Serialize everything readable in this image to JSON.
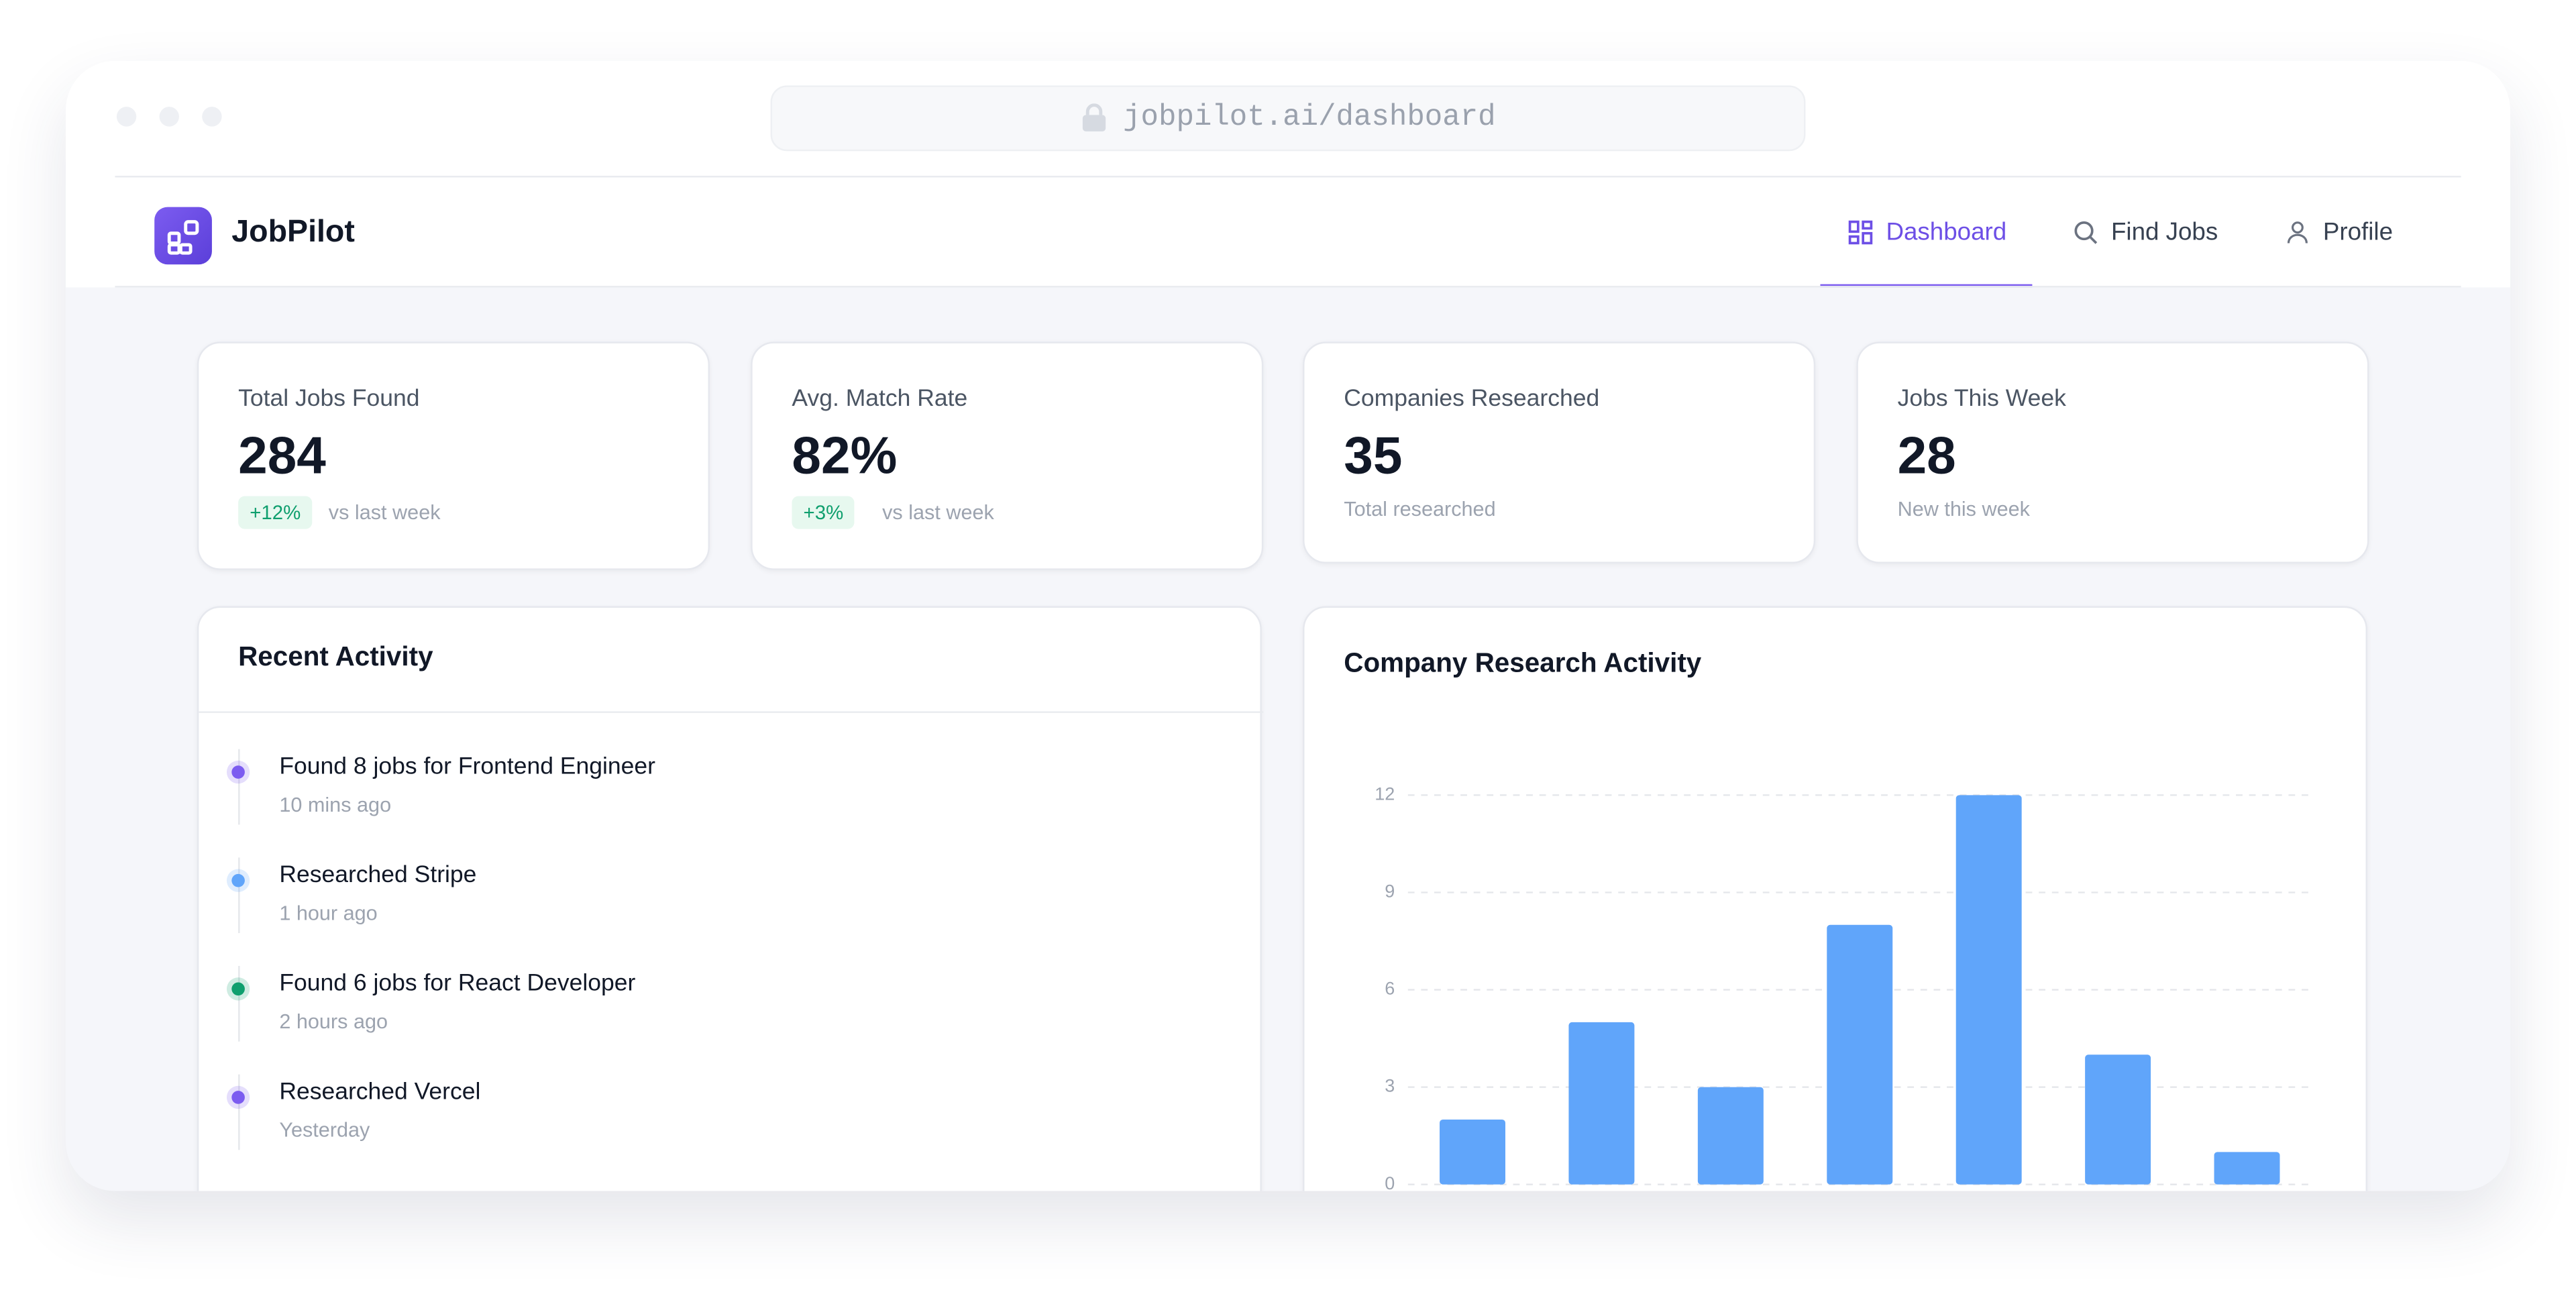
{
  "browser": {
    "url": "jobpilot.ai/dashboard"
  },
  "app": {
    "brand": "JobPilot",
    "nav": [
      "Dashboard",
      "Find Jobs",
      "Profile"
    ],
    "stats": [
      {
        "label": "Total Jobs Found",
        "value": "284",
        "badge": "+12%",
        "note": "vs last week"
      },
      {
        "label": "Avg. Match Rate",
        "value": "82%",
        "badge": "+3%",
        "note": "vs last week"
      },
      {
        "label": "Companies Researched",
        "value": "35",
        "note": "Total researched"
      },
      {
        "label": "Jobs This Week",
        "value": "28",
        "note": "New this week"
      }
    ],
    "activity": {
      "title": "Recent Activity",
      "items": [
        {
          "text": "Found 8 jobs for Frontend Engineer",
          "time": "10 mins ago",
          "color": "#7c5cf0"
        },
        {
          "text": "Researched Stripe",
          "time": "1 hour ago",
          "color": "#60a5fa"
        },
        {
          "text": "Found 6 jobs for React Developer",
          "time": "2 hours ago",
          "color": "#0f9f6e"
        },
        {
          "text": "Researched Vercel",
          "time": "Yesterday",
          "color": "#7c5cf0"
        }
      ]
    }
  },
  "chart_data": {
    "type": "bar",
    "title": "Company Research Activity",
    "categories": [
      null,
      null,
      null,
      null,
      null,
      null,
      null
    ],
    "values": [
      2,
      5,
      3,
      8,
      12,
      4,
      1
    ],
    "color": "#60a5fa",
    "ylim": [
      0,
      12
    ],
    "yticks": [
      0,
      3,
      6,
      9,
      12
    ],
    "grid": true
  }
}
